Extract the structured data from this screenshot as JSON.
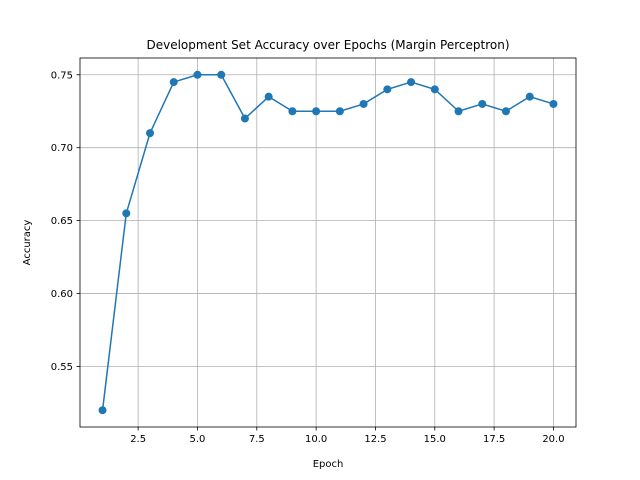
{
  "chart_data": {
    "type": "line",
    "title": "Development Set Accuracy over Epochs (Margin Perceptron)",
    "xlabel": "Epoch",
    "ylabel": "Accuracy",
    "xlim": [
      0.05,
      20.95
    ],
    "ylim": [
      0.5085,
      0.7615
    ],
    "xticks": [
      2.5,
      5.0,
      7.5,
      10.0,
      12.5,
      15.0,
      17.5,
      20.0
    ],
    "xtick_labels": [
      "2.5",
      "5.0",
      "7.5",
      "10.0",
      "12.5",
      "15.0",
      "17.5",
      "20.0"
    ],
    "yticks": [
      0.55,
      0.6,
      0.65,
      0.7,
      0.75
    ],
    "ytick_labels": [
      "0.55",
      "0.60",
      "0.65",
      "0.70",
      "0.75"
    ],
    "grid": true,
    "legend": "none",
    "series": [
      {
        "color": "#1f77b4",
        "marker": "circle",
        "x": [
          1,
          2,
          3,
          4,
          5,
          6,
          7,
          8,
          9,
          10,
          11,
          12,
          13,
          14,
          15,
          16,
          17,
          18,
          19,
          20
        ],
        "y": [
          0.52,
          0.655,
          0.71,
          0.745,
          0.75,
          0.75,
          0.72,
          0.735,
          0.725,
          0.725,
          0.725,
          0.73,
          0.74,
          0.745,
          0.74,
          0.725,
          0.73,
          0.725,
          0.735,
          0.73
        ]
      }
    ]
  }
}
